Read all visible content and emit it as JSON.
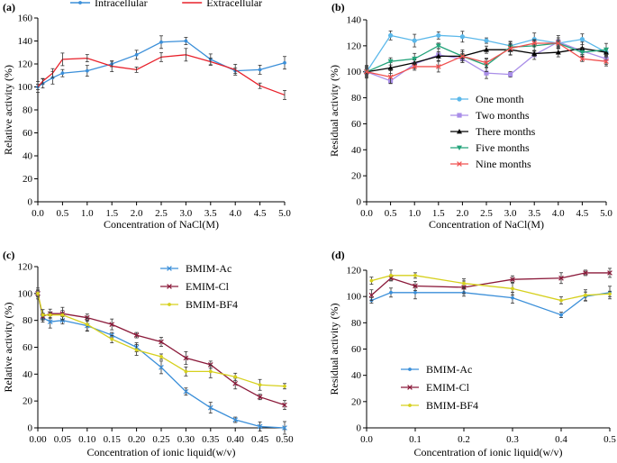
{
  "chart_data": [
    {
      "panel": "(a)",
      "type": "line",
      "xlabel": "Concentration of NaCl(M)",
      "ylabel": "Relative activity (%)",
      "xlim": [
        0,
        5
      ],
      "ylim": [
        0,
        160
      ],
      "xticks": [
        "0.0",
        "0.5",
        "1.0",
        "1.5",
        "2.0",
        "2.5",
        "3.0",
        "3.5",
        "4.0",
        "4.5",
        "5.0"
      ],
      "yticks": [
        "0",
        "20",
        "40",
        "60",
        "80",
        "100",
        "120",
        "140",
        "160"
      ],
      "legend_position": "top",
      "x": [
        0,
        0.1,
        0.3,
        0.5,
        1.0,
        1.5,
        2.0,
        2.5,
        3.0,
        3.5,
        4.0,
        4.5,
        5.0
      ],
      "series": [
        {
          "name": "Intracellular",
          "color": "#3b8fd9",
          "marker": "dot",
          "values": [
            100,
            103,
            108,
            112,
            114,
            120,
            128,
            139,
            140,
            124,
            114,
            115,
            121
          ]
        },
        {
          "name": "Extracellular",
          "color": "#e8202a",
          "marker": "none",
          "values": [
            100,
            105,
            112,
            124,
            125,
            118,
            115,
            126,
            128,
            122,
            115,
            101,
            93
          ]
        }
      ]
    },
    {
      "panel": "(b)",
      "type": "line",
      "xlabel": "Concentration of NaCl(M)",
      "ylabel": "Residual activity (%)",
      "xlim": [
        0,
        5
      ],
      "ylim": [
        0,
        140
      ],
      "xticks": [
        "0.0",
        "0.5",
        "1.0",
        "1.5",
        "2.0",
        "2.5",
        "3.0",
        "3.5",
        "4.0",
        "4.5",
        "5.0"
      ],
      "yticks": [
        "0",
        "20",
        "40",
        "60",
        "80",
        "100",
        "120",
        "140"
      ],
      "legend_position": "center",
      "x": [
        0,
        0.5,
        1.0,
        1.5,
        2.0,
        2.5,
        3.0,
        3.5,
        4.0,
        4.5,
        5.0
      ],
      "series": [
        {
          "name": "One month",
          "color": "#5bb8ea",
          "marker": "circle",
          "values": [
            100,
            128,
            124,
            128,
            127,
            124,
            120,
            125,
            122,
            125,
            115
          ]
        },
        {
          "name": "Two months",
          "color": "#a98ee8",
          "marker": "square",
          "values": [
            100,
            93,
            106,
            113,
            110,
            99,
            98,
            113,
            123,
            116,
            110
          ]
        },
        {
          "name": "There months",
          "color": "#000000",
          "marker": "triangle",
          "values": [
            100,
            103,
            107,
            112,
            112,
            117,
            117,
            114,
            115,
            118,
            115
          ]
        },
        {
          "name": "Five months",
          "color": "#23a37a",
          "marker": "triangle-down",
          "values": [
            100,
            108,
            110,
            120,
            112,
            105,
            119,
            120,
            122,
            115,
            117
          ]
        },
        {
          "name": "Nine months",
          "color": "#f0504f",
          "marker": "x",
          "values": [
            100,
            96,
            104,
            104,
            112,
            107,
            118,
            122,
            122,
            110,
            108
          ]
        }
      ]
    },
    {
      "panel": "(c)",
      "type": "line",
      "xlabel": "Concentration of ionic liquid(w/v)",
      "ylabel": "Relative activity (%)",
      "xlim": [
        0,
        0.5
      ],
      "ylim": [
        0,
        120
      ],
      "xticks": [
        "0.00",
        "0.05",
        "0.10",
        "0.15",
        "0.20",
        "0.25",
        "0.30",
        "0.35",
        "0.40",
        "0.45",
        "0.50"
      ],
      "yticks": [
        "0",
        "20",
        "40",
        "60",
        "80",
        "100",
        "120"
      ],
      "legend_position": "top-right",
      "x": [
        0,
        0.01,
        0.025,
        0.05,
        0.1,
        0.15,
        0.2,
        0.25,
        0.3,
        0.35,
        0.4,
        0.45,
        0.5
      ],
      "series": [
        {
          "name": "BMIM-Ac",
          "color": "#3b8fd9",
          "marker": "x",
          "values": [
            100,
            82,
            79,
            80,
            76,
            69,
            60,
            45,
            27,
            15,
            6,
            1,
            0
          ]
        },
        {
          "name": "EMIM-Cl",
          "color": "#8b1a3a",
          "marker": "x",
          "values": [
            100,
            83,
            85,
            85,
            82,
            77,
            69,
            64,
            52,
            47,
            33,
            23,
            17
          ]
        },
        {
          "name": "BMIM-BF4",
          "color": "#d6d01e",
          "marker": "dot",
          "values": [
            100,
            84,
            84,
            84,
            77,
            66,
            58,
            53,
            42,
            42,
            38,
            32,
            31
          ]
        }
      ]
    },
    {
      "panel": "(d)",
      "type": "line",
      "xlabel": "Concentration of ionic liquid(w/v)",
      "ylabel": "Residual activity (%)",
      "xlim": [
        0,
        0.5
      ],
      "ylim": [
        0,
        120
      ],
      "xticks": [
        "0.0",
        "0.1",
        "0.2",
        "0.3",
        "0.4",
        "0.5"
      ],
      "yticks": [
        "0",
        "20",
        "40",
        "60",
        "80",
        "100",
        "120"
      ],
      "legend_position": "bottom-left",
      "x": [
        0.01,
        0.05,
        0.1,
        0.2,
        0.3,
        0.4,
        0.45,
        0.5
      ],
      "series": [
        {
          "name": "BMIM-Ac",
          "color": "#3b8fd9",
          "marker": "dot",
          "values": [
            97,
            103,
            103,
            103,
            99,
            86,
            100,
            103
          ]
        },
        {
          "name": "EMIM-Cl",
          "color": "#8b1a3a",
          "marker": "x",
          "values": [
            101,
            114,
            108,
            107,
            113,
            114,
            118,
            118
          ]
        },
        {
          "name": "BMIM-BF4",
          "color": "#d6d01e",
          "marker": "dot",
          "values": [
            112,
            116,
            116,
            110,
            106,
            97,
            101,
            102
          ]
        }
      ]
    }
  ]
}
